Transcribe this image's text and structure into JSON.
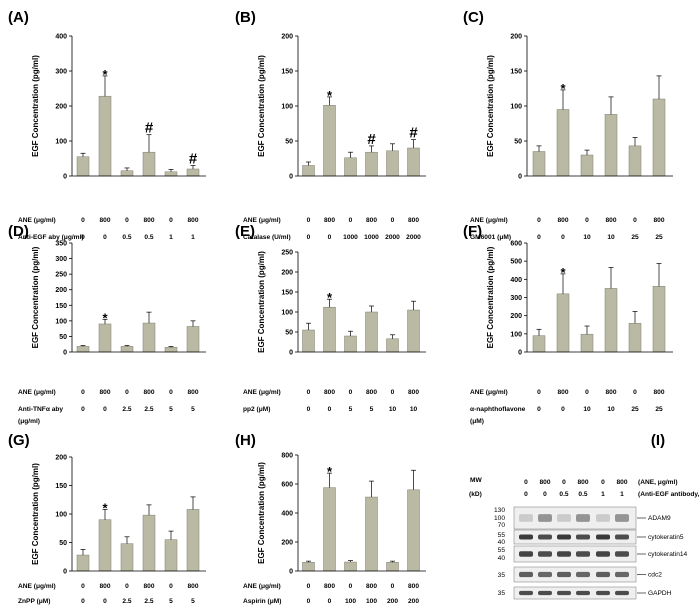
{
  "figure": {
    "bar_color": "#b9b9a4",
    "bar_stroke": "#7f7f6f",
    "axis_color": "#000000",
    "blot_band_color": "#3a3a3a"
  },
  "chart_data": [
    {
      "panel": "(A)",
      "type": "bar",
      "ylabel": "EGF Concentration (pg/ml)",
      "ylim": [
        0,
        400
      ],
      "yticks": [
        "0",
        "100",
        "200",
        "300",
        "400"
      ],
      "values": [
        55,
        228,
        15,
        68,
        12,
        20
      ],
      "errors": [
        10,
        58,
        8,
        50,
        7,
        10
      ],
      "marks": [
        "",
        "*",
        "",
        "#",
        "",
        "#"
      ],
      "conditions": [
        {
          "label": "ANE (μg/ml)",
          "values": [
            "0",
            "800",
            "0",
            "800",
            "0",
            "800"
          ]
        },
        {
          "label": "Anti-EGF aby (μg/ml)",
          "values": [
            "0",
            "0",
            "0.5",
            "0.5",
            "1",
            "1"
          ]
        }
      ]
    },
    {
      "panel": "(B)",
      "type": "bar",
      "ylabel": "EGF Concentration (pg/ml)",
      "ylim": [
        0,
        200
      ],
      "yticks": [
        "0",
        "50",
        "100",
        "150",
        "200"
      ],
      "values": [
        15,
        101,
        26,
        34,
        36,
        40
      ],
      "errors": [
        5,
        12,
        8,
        9,
        10,
        12
      ],
      "marks": [
        "",
        "*",
        "",
        "#",
        "",
        "#"
      ],
      "conditions": [
        {
          "label": "ANE (μg/ml)",
          "values": [
            "0",
            "800",
            "0",
            "800",
            "0",
            "800"
          ]
        },
        {
          "label": "Catalase (U/ml)",
          "values": [
            "0",
            "0",
            "1000",
            "1000",
            "2000",
            "2000"
          ]
        }
      ]
    },
    {
      "panel": "(C)",
      "type": "bar",
      "ylabel": "EGF Concentration (pg/ml)",
      "ylim": [
        0,
        200
      ],
      "yticks": [
        "0",
        "50",
        "100",
        "150",
        "200"
      ],
      "values": [
        35,
        95,
        30,
        88,
        43,
        110
      ],
      "errors": [
        8,
        28,
        7,
        25,
        12,
        33
      ],
      "marks": [
        "",
        "*",
        "",
        "",
        "",
        ""
      ],
      "conditions": [
        {
          "label": "ANE (μg/ml)",
          "values": [
            "0",
            "800",
            "0",
            "800",
            "0",
            "800"
          ]
        },
        {
          "label": "GM6001 (μM)",
          "values": [
            "0",
            "0",
            "10",
            "10",
            "25",
            "25"
          ]
        }
      ]
    },
    {
      "panel": "(D)",
      "type": "bar",
      "ylabel": "EGF Concentration (pg/ml)",
      "ylim": [
        0,
        350
      ],
      "yticks": [
        "0",
        "50",
        "100",
        "150",
        "200",
        "250",
        "300",
        "350"
      ],
      "values": [
        18,
        90,
        18,
        93,
        15,
        82
      ],
      "errors": [
        3,
        15,
        3,
        35,
        3,
        18
      ],
      "marks": [
        "",
        "*",
        "",
        "",
        "",
        ""
      ],
      "conditions": [
        {
          "label": "ANE (μg/ml)",
          "values": [
            "0",
            "800",
            "0",
            "800",
            "0",
            "800"
          ]
        },
        {
          "label": "Anti-TNFα aby",
          "values": [
            "0",
            "0",
            "2.5",
            "2.5",
            "5",
            "5"
          ]
        },
        {
          "label": "(μg/ml)",
          "values": []
        }
      ]
    },
    {
      "panel": "(E)",
      "type": "bar",
      "ylabel": "EGF Concentration (pg/ml)",
      "ylim": [
        0,
        250
      ],
      "yticks": [
        "0",
        "50",
        "100",
        "150",
        "200",
        "250"
      ],
      "values": [
        55,
        112,
        40,
        100,
        33,
        105
      ],
      "errors": [
        17,
        20,
        12,
        15,
        10,
        22
      ],
      "marks": [
        "",
        "*",
        "",
        "",
        "",
        ""
      ],
      "conditions": [
        {
          "label": "ANE (μg/ml)",
          "values": [
            "0",
            "800",
            "0",
            "800",
            "0",
            "800"
          ]
        },
        {
          "label": "pp2 (μM)",
          "values": [
            "0",
            "0",
            "5",
            "5",
            "10",
            "10"
          ]
        }
      ]
    },
    {
      "panel": "(F)",
      "type": "bar",
      "ylabel": "EGF Concentration (pg/ml)",
      "ylim": [
        0,
        600
      ],
      "yticks": [
        "0",
        "100",
        "200",
        "300",
        "400",
        "500",
        "600"
      ],
      "values": [
        90,
        320,
        98,
        350,
        158,
        362
      ],
      "errors": [
        35,
        110,
        45,
        115,
        65,
        125
      ],
      "marks": [
        "",
        "*",
        "",
        "",
        "",
        ""
      ],
      "conditions": [
        {
          "label": "ANE (μg/ml)",
          "values": [
            "0",
            "800",
            "0",
            "800",
            "0",
            "800"
          ]
        },
        {
          "label": "α-naphthoflavone",
          "values": [
            "0",
            "0",
            "10",
            "10",
            "25",
            "25"
          ]
        },
        {
          "label": "(μM)",
          "values": []
        }
      ]
    },
    {
      "panel": "(G)",
      "type": "bar",
      "ylabel": "EGF Concentration (pg/ml)",
      "ylim": [
        0,
        200
      ],
      "yticks": [
        "0",
        "50",
        "100",
        "150",
        "200"
      ],
      "values": [
        28,
        90,
        48,
        98,
        55,
        108
      ],
      "errors": [
        10,
        18,
        12,
        18,
        15,
        22
      ],
      "marks": [
        "",
        "*",
        "",
        "",
        "",
        ""
      ],
      "conditions": [
        {
          "label": "ANE (μg/ml)",
          "values": [
            "0",
            "800",
            "0",
            "800",
            "0",
            "800"
          ]
        },
        {
          "label": "ZnPP (μM)",
          "values": [
            "0",
            "0",
            "2.5",
            "2.5",
            "5",
            "5"
          ]
        }
      ]
    },
    {
      "panel": "(H)",
      "type": "bar",
      "ylabel": "EGF Concentration (pg/ml)",
      "ylim": [
        0,
        800
      ],
      "yticks": [
        "0",
        "200",
        "400",
        "600",
        "800"
      ],
      "values": [
        60,
        575,
        62,
        510,
        60,
        560
      ],
      "errors": [
        8,
        100,
        10,
        110,
        8,
        135
      ],
      "marks": [
        "",
        "*",
        "",
        "",
        "",
        ""
      ],
      "conditions": [
        {
          "label": "ANE (μg/ml)",
          "values": [
            "0",
            "800",
            "0",
            "800",
            "0",
            "800"
          ]
        },
        {
          "label": "Aspirin (μM)",
          "values": [
            "0",
            "0",
            "100",
            "100",
            "200",
            "200"
          ]
        }
      ]
    }
  ],
  "blot": {
    "panel": "(I)",
    "mw_header": "MW",
    "kd_header": "(kD)",
    "ane_values": [
      "0",
      "800",
      "0",
      "800",
      "0",
      "800"
    ],
    "ane_label": "(ANE, μg/ml)",
    "aby_values": [
      "0",
      "0",
      "0.5",
      "0.5",
      "1",
      "1"
    ],
    "aby_label": "(Anti-EGF antibody, μg/ml)",
    "strips": [
      {
        "markers": [
          "130",
          "100",
          "70"
        ],
        "label": "ADAM9",
        "bands": [
          0.2,
          0.5,
          0.2,
          0.5,
          0.2,
          0.5
        ]
      },
      {
        "markers": [
          "55",
          "40"
        ],
        "label": "cytokeratin5",
        "bands": [
          1,
          0.9,
          1,
          0.9,
          1,
          0.9
        ]
      },
      {
        "markers": [
          "55",
          "40"
        ],
        "label": "cytokeratin14",
        "bands": [
          0.95,
          0.9,
          0.95,
          0.9,
          0.95,
          0.9
        ]
      },
      {
        "markers": [
          "35"
        ],
        "label": "cdc2",
        "bands": [
          0.8,
          0.75,
          0.8,
          0.75,
          0.8,
          0.75
        ]
      },
      {
        "markers": [
          "35"
        ],
        "label": "GAPDH",
        "bands": [
          0.9,
          0.9,
          0.9,
          0.9,
          0.9,
          0.9
        ]
      }
    ]
  }
}
